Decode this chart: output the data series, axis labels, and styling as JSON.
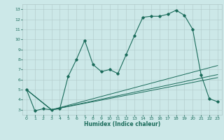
{
  "xlabel": "Humidex (Indice chaleur)",
  "bg_color": "#cce8e8",
  "grid_color": "#b0c8c8",
  "line_color": "#1a6b5a",
  "xlim": [
    -0.5,
    23.5
  ],
  "ylim": [
    2.5,
    13.5
  ],
  "xticks": [
    0,
    1,
    2,
    3,
    4,
    5,
    6,
    7,
    8,
    9,
    10,
    11,
    12,
    13,
    14,
    15,
    16,
    17,
    18,
    19,
    20,
    21,
    22,
    23
  ],
  "yticks": [
    3,
    4,
    5,
    6,
    7,
    8,
    9,
    10,
    11,
    12,
    13
  ],
  "series": [
    {
      "x": [
        0,
        1,
        2,
        3,
        4,
        5,
        6,
        7,
        8,
        9,
        10,
        11,
        12,
        13,
        14,
        15,
        16,
        17,
        18,
        19,
        20,
        21,
        22,
        23
      ],
      "y": [
        5.0,
        2.9,
        3.1,
        3.0,
        3.1,
        6.3,
        8.0,
        9.9,
        7.5,
        6.8,
        7.0,
        6.6,
        8.5,
        10.4,
        12.2,
        12.3,
        12.3,
        12.5,
        12.9,
        12.4,
        11.0,
        6.5,
        4.1,
        3.8
      ]
    },
    {
      "x": [
        0,
        3,
        23
      ],
      "y": [
        5.0,
        3.0,
        7.4
      ]
    },
    {
      "x": [
        0,
        3,
        23
      ],
      "y": [
        5.0,
        3.0,
        6.5
      ]
    },
    {
      "x": [
        0,
        3,
        23
      ],
      "y": [
        5.0,
        3.0,
        6.2
      ]
    }
  ]
}
